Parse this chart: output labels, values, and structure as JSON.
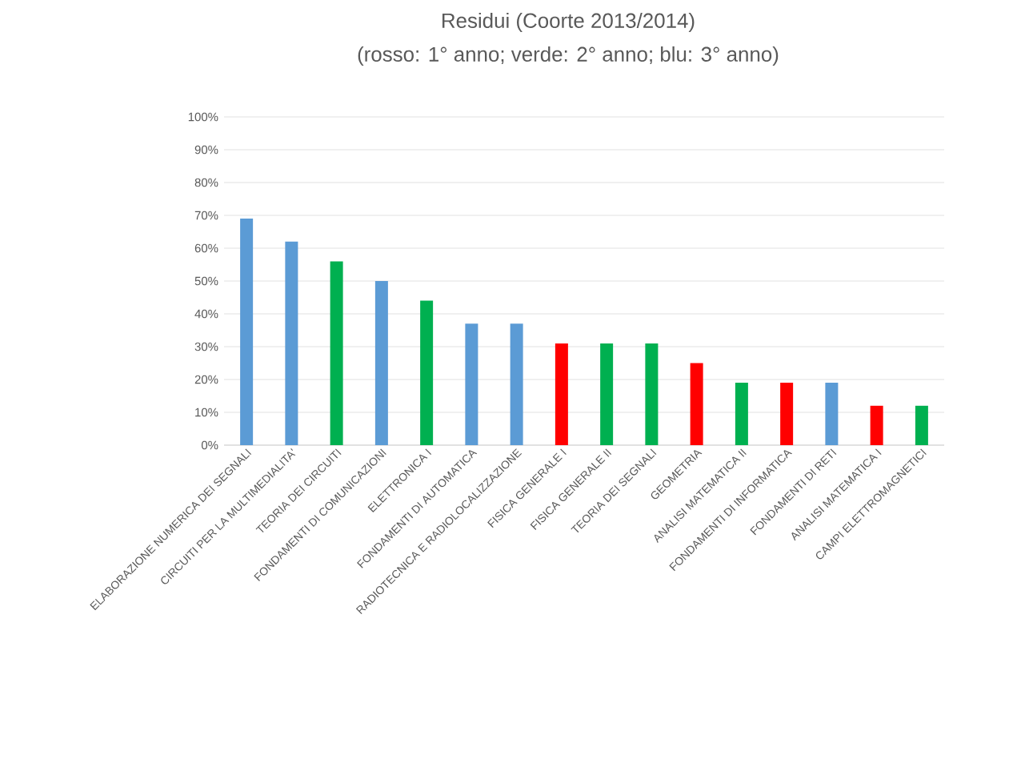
{
  "chart_data": {
    "type": "bar",
    "title": "Residui (Coorte 2013/2014)",
    "subtitle": "(rosso: 1° anno; verde: 2° anno; blu: 3° anno)",
    "categories": [
      "ELABORAZIONE NUMERICA DEI SEGNALI",
      "CIRCUITI PER LA MULTIMEDIALITA'",
      "TEORIA DEI CIRCUITI",
      "FONDAMENTI DI COMUNICAZIONI",
      "ELETTRONICA I",
      "FONDAMENTI DI AUTOMATICA",
      "RADIOTECNICA E RADIOLOCALIZZAZIONE",
      "FISICA GENERALE I",
      "FISICA GENERALE II",
      "TEORIA DEI SEGNALI",
      "GEOMETRIA",
      "ANALISI MATEMATICA II",
      "FONDAMENTI DI INFORMATICA",
      "FONDAMENTI DI RETI",
      "ANALISI MATEMATICA I",
      "CAMPI ELETTROMAGNETICI"
    ],
    "values": [
      69,
      62,
      56,
      50,
      44,
      37,
      37,
      31,
      31,
      31,
      25,
      19,
      19,
      19,
      12,
      12
    ],
    "colors": [
      "#5b9bd5",
      "#5b9bd5",
      "#00b050",
      "#5b9bd5",
      "#00b050",
      "#5b9bd5",
      "#5b9bd5",
      "#ff0000",
      "#00b050",
      "#00b050",
      "#ff0000",
      "#00b050",
      "#ff0000",
      "#5b9bd5",
      "#ff0000",
      "#00b050"
    ],
    "ylim": [
      0,
      100
    ],
    "yticks": [
      {
        "value": 0,
        "label": "0%"
      },
      {
        "value": 10,
        "label": "10%"
      },
      {
        "value": 20,
        "label": "20%"
      },
      {
        "value": 30,
        "label": "30%"
      },
      {
        "value": 40,
        "label": "40%"
      },
      {
        "value": 50,
        "label": "50%"
      },
      {
        "value": 60,
        "label": "60%"
      },
      {
        "value": 70,
        "label": "70%"
      },
      {
        "value": 80,
        "label": "80%"
      },
      {
        "value": 90,
        "label": "90%"
      },
      {
        "value": 100,
        "label": "100%"
      }
    ],
    "grid": "y"
  }
}
